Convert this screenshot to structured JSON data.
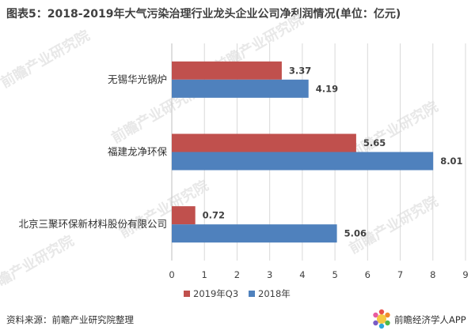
{
  "title": "图表5：2018-2019年大气污染治理行业龙头企业公司净利润情况(单位：亿元)",
  "source": "资料来源：前瞻产业研究院整理",
  "brand": "前瞻经济学人APP",
  "watermark": "前瞻产业研究院",
  "chart_data": {
    "type": "bar",
    "orientation": "horizontal",
    "categories": [
      "无锡华光锅炉",
      "福建龙净环保",
      "北京三聚环保新材料股份有限公司"
    ],
    "series": [
      {
        "name": "2019年Q3",
        "color": "#C0504D",
        "values": [
          3.37,
          5.65,
          0.72
        ]
      },
      {
        "name": "2018年",
        "color": "#4F81BD",
        "values": [
          4.19,
          8.01,
          5.06
        ]
      }
    ],
    "xlim": [
      0,
      9
    ],
    "xticks": [
      0,
      1,
      2,
      3,
      4,
      5,
      6,
      7,
      8,
      9
    ],
    "grid": true,
    "legend_position": "bottom",
    "data_labels": true
  }
}
